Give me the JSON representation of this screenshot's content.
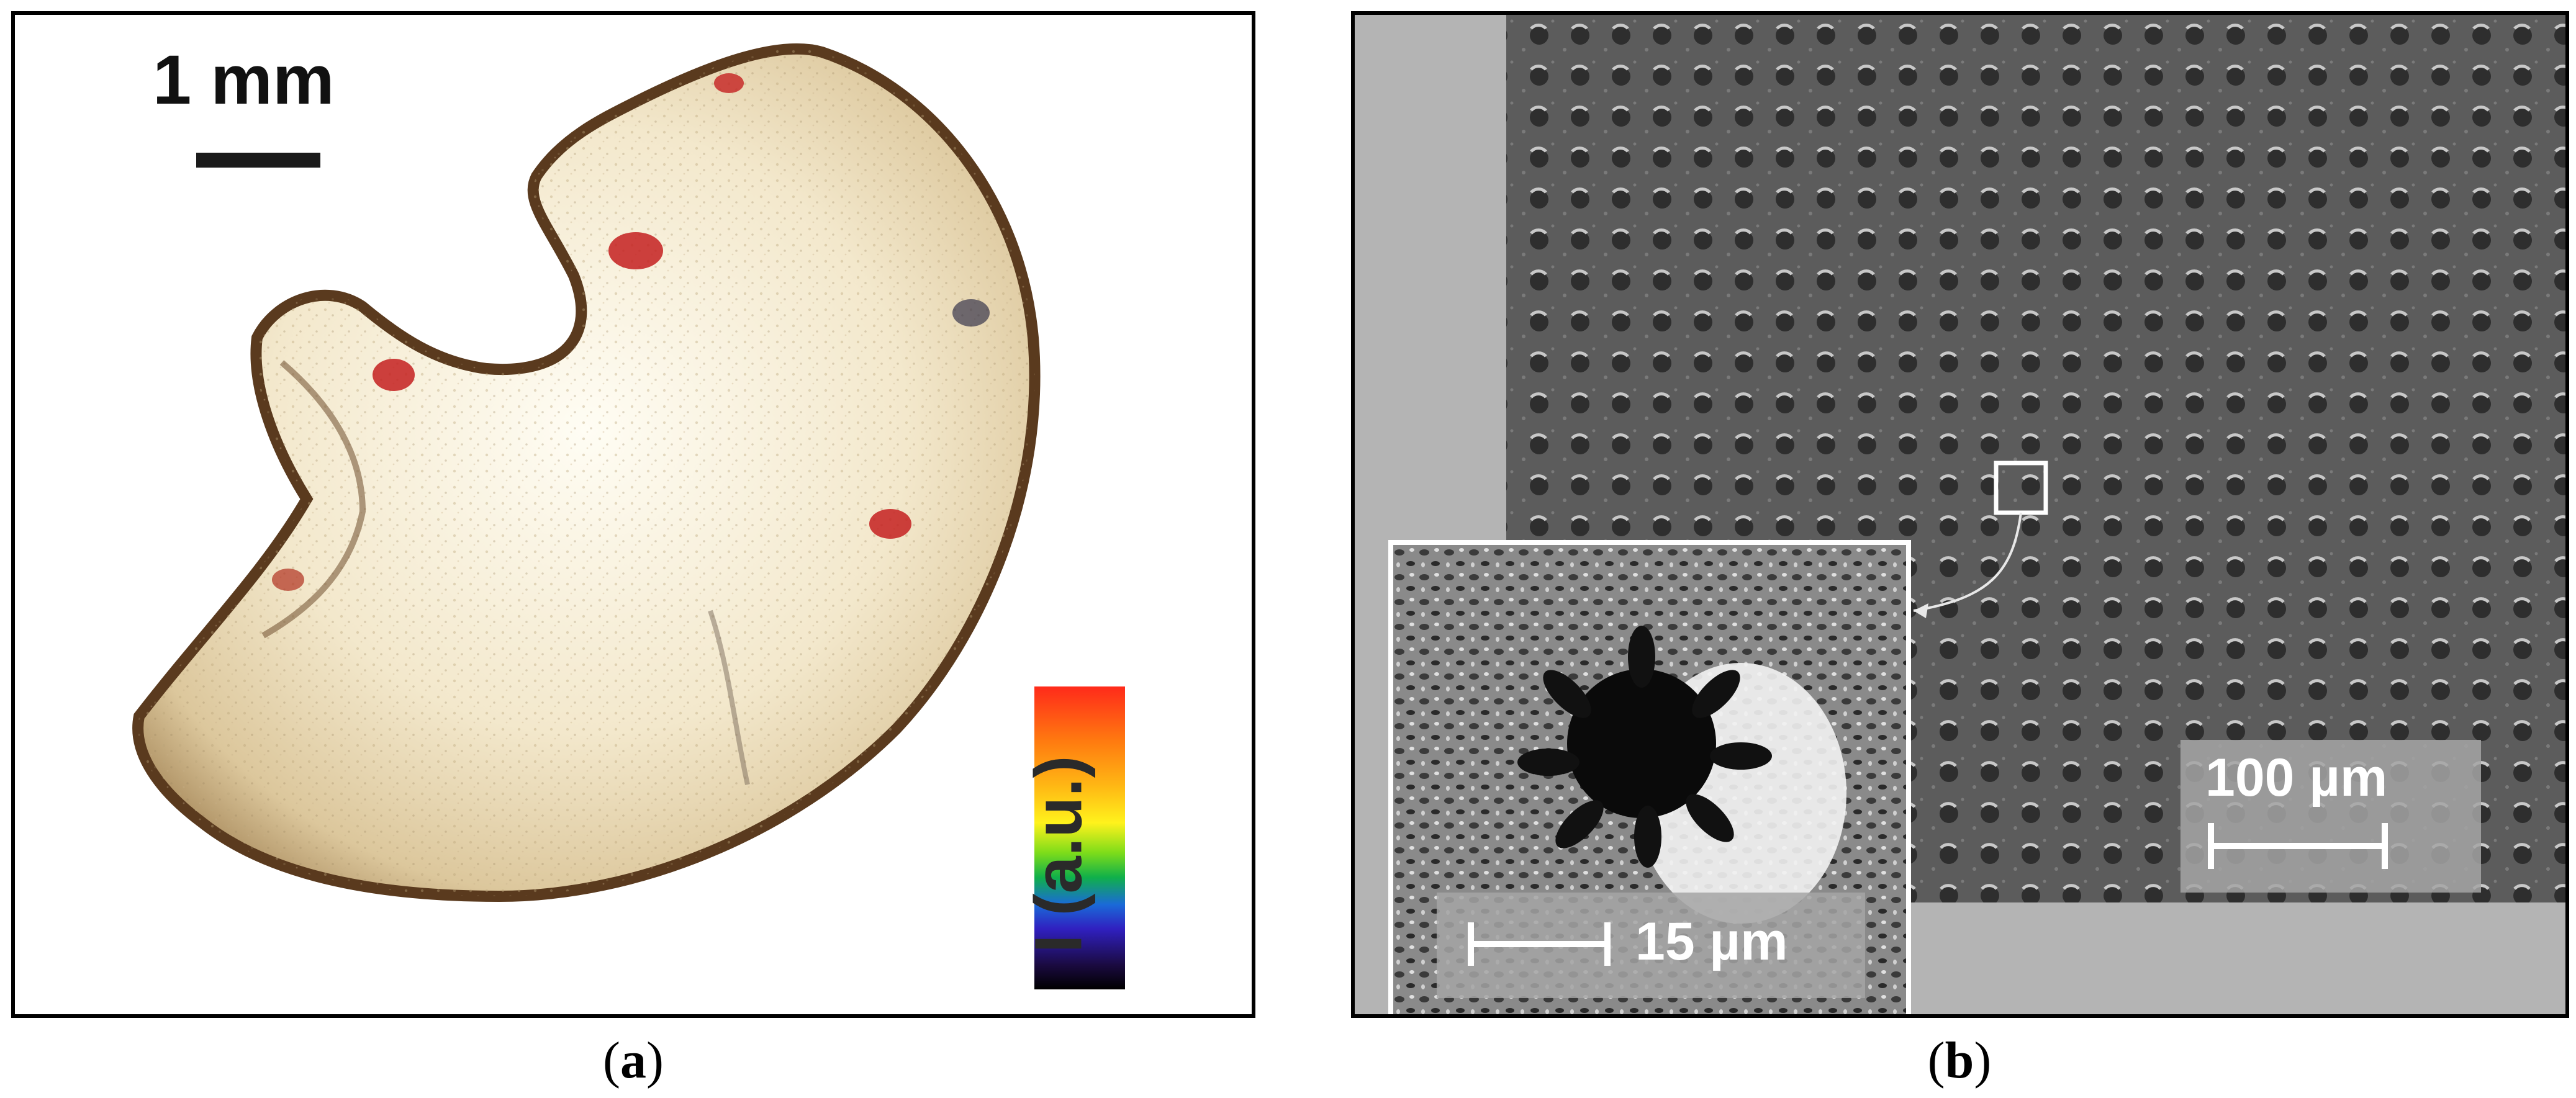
{
  "panel_a": {
    "scale_bar_label": "1 mm",
    "colorbar_label": "I (a.u.)",
    "caption": {
      "open": "(",
      "letter": "a",
      "close": ")"
    }
  },
  "panel_b": {
    "main_scale_label": "100 µm",
    "inset_scale_label": "15 µm",
    "caption": {
      "open": "(",
      "letter": "b",
      "close": ")"
    }
  },
  "colors": {
    "tissue": "#f2e6c8",
    "tissue_rim": "#6a4a2a",
    "hotspot": "#c02020",
    "sem_background": "#b4b4b4",
    "sem_texture": "#555555"
  }
}
